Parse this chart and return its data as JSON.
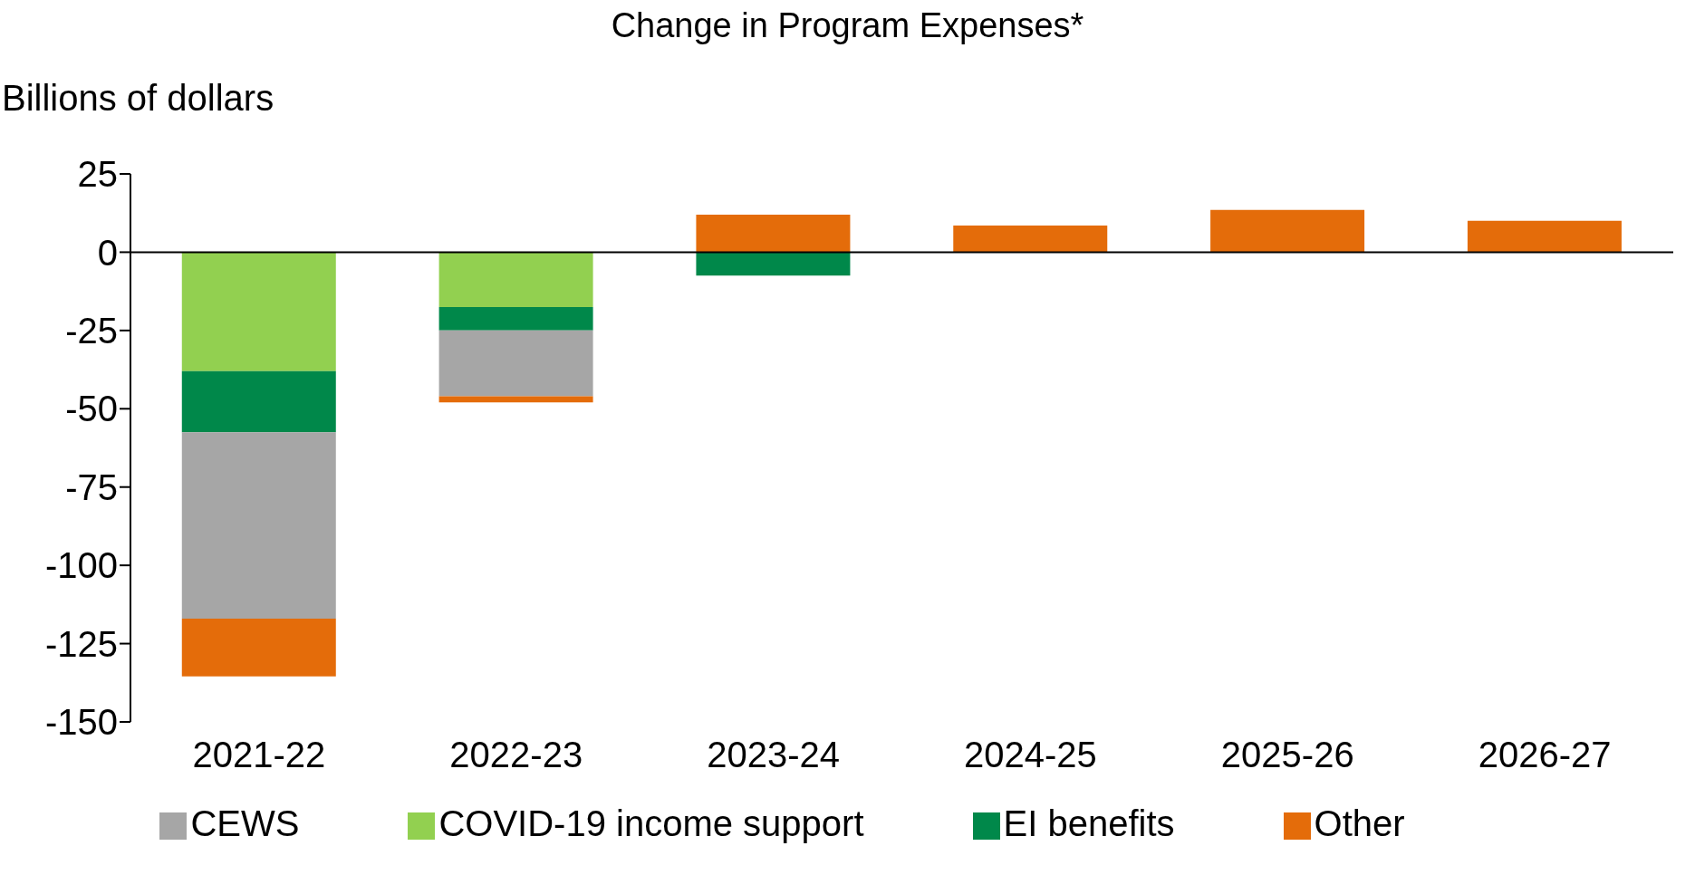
{
  "chart_data": {
    "type": "bar",
    "title": "Change in Program Expenses*",
    "ylabel": "Billions of dollars",
    "stacked": true,
    "legend": "bottom",
    "categories": [
      "2021-22",
      "2022-23",
      "2023-24",
      "2024-25",
      "2025-26",
      "2026-27"
    ],
    "series": [
      {
        "name": "COVID-19 income support",
        "color": "#92d050",
        "values": [
          -38,
          -17.5,
          null,
          null,
          null,
          null
        ]
      },
      {
        "name": "EI benefits",
        "color": "#00884a",
        "values": [
          -19.5,
          -7.5,
          -7.5,
          null,
          null,
          null
        ]
      },
      {
        "name": "CEWS",
        "color": "#a6a6a6",
        "values": [
          -59.5,
          -21,
          null,
          null,
          null,
          null
        ]
      },
      {
        "name": "Other",
        "color": "#e46c0a",
        "values": [
          -18.5,
          -2,
          12,
          8.5,
          13.5,
          10
        ]
      }
    ],
    "ylim": [
      -150,
      25
    ],
    "yticks": [
      -150,
      -125,
      -100,
      -75,
      -50,
      -25,
      0,
      25
    ]
  }
}
